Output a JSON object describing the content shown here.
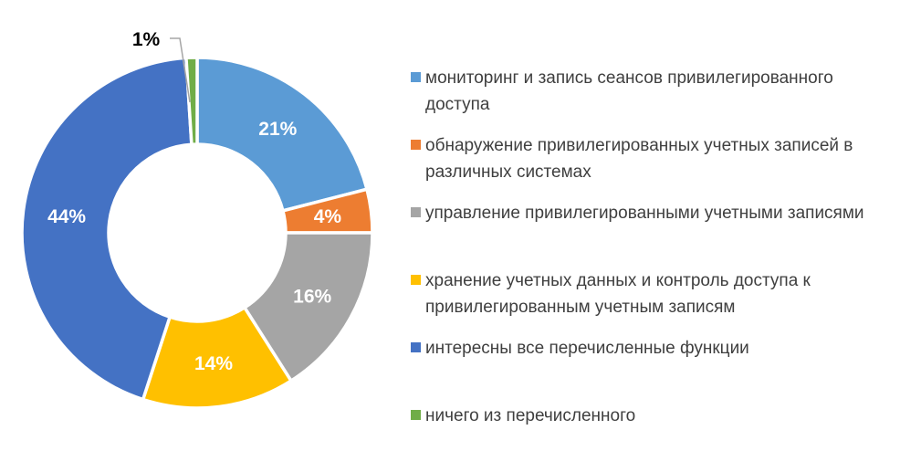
{
  "page": {
    "background": "#FFFFFF"
  },
  "chart_data": {
    "type": "pie",
    "subtype": "donut",
    "title": "",
    "legend_position": "right",
    "grid": false,
    "hole_ratio": 0.505,
    "unit": "%",
    "categories": [
      "мониторинг и запись сеансов привилегированного доступа",
      "обнаружение привилегированных учетных записей в различных системах",
      "управление привилегированными учетными записями",
      "хранение учетных данных и контроль доступа к привилегированным учетным записям",
      "интересны все перечисленные функции",
      "ничего из перечисленного"
    ],
    "values": [
      21,
      4,
      16,
      14,
      44,
      1
    ],
    "slices": [
      {
        "value": 21,
        "pct_label": "21%",
        "color": "#5B9BD5",
        "label_color": "#FFFFFF",
        "label_placement": "inside",
        "legend_label": "мониторинг и запись сеансов привилегированного доступа",
        "legend_lines": [
          "мониторинг и запись сеансов привилегированного",
          "доступа"
        ]
      },
      {
        "value": 4,
        "pct_label": "4%",
        "color": "#ED7D31",
        "label_color": "#FFFFFF",
        "label_placement": "inside",
        "legend_label": "обнаружение привилегированных учетных записей в различных системах",
        "legend_lines": [
          "обнаружение привилегированных учетных записей в",
          "различных системах"
        ]
      },
      {
        "value": 16,
        "pct_label": "16%",
        "color": "#A5A5A5",
        "label_color": "#FFFFFF",
        "label_placement": "inside",
        "legend_label": "управление привилегированными учетными записями",
        "legend_lines": [
          "управление привилегированными учетными записями"
        ]
      },
      {
        "value": 14,
        "pct_label": "14%",
        "color": "#FFC000",
        "label_color": "#FFFFFF",
        "label_placement": "inside",
        "legend_label": "хранение учетных данных и контроль доступа к привилегированным учетным записям",
        "legend_lines": [
          "хранение учетных данных и контроль доступа к",
          "привилегированным учетным записям"
        ]
      },
      {
        "value": 44,
        "pct_label": "44%",
        "color": "#4472C4",
        "label_color": "#FFFFFF",
        "label_placement": "inside",
        "legend_label": "интересны все перечисленные функции",
        "legend_lines": [
          "интересны все перечисленные функции"
        ]
      },
      {
        "value": 1,
        "pct_label": "1%",
        "color": "#70AD47",
        "label_color": "#000000",
        "label_placement": "outside",
        "legend_label": "ничего из перечисленного",
        "legend_lines": [
          "ничего из перечисленного"
        ]
      }
    ],
    "leader_line_color": "#A6A6A6",
    "slice_border_color": "#FFFFFF"
  }
}
